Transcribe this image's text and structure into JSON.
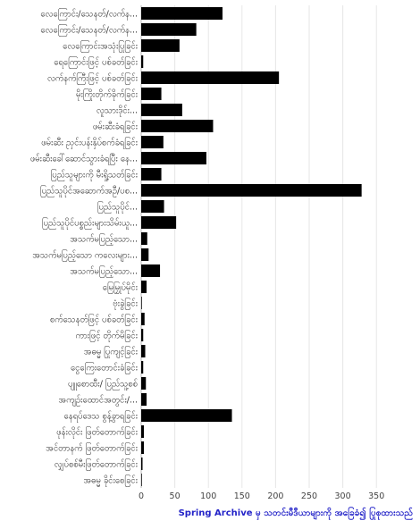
{
  "chart_data": {
    "type": "bar",
    "orientation": "horizontal",
    "categories": [
      "လေကြောင်း/သေနတ်/လက်န...",
      "လေကြောင်း/သေနတ်/လက်န...",
      "လေကြောင်းအသုံးပြုခြင်း",
      "ရေကြောင်းဖြင့် ပစ်ခတ်ခြင်း",
      "လက်နက်ကြီးဖြင့် ပစ်ခတ်ခြင်း",
      "မိုးကြိုးတိုက်ခိုက်ခြင်း",
      "လူသားဒိုင်း...",
      "ဖမ်းဆီးခံရခြင်း",
      "ဖမ်းဆီး ညှင်းပန်းနှိပ်စက်ခံရခြင်း",
      "ဖမ်းဆီးခေါ်ဆောင်သွားခံရပြီး နေ...",
      "ပြည်သူများကို မီးရှို့သတ်ခြင်း",
      "ပြည်သူပိုင်အဆောက်အဦ/ပစ...",
      "ပြည်သူပိုင်...",
      "ပြည်သူပိုင်ပစ္စည်းများသိမ်းယူ...",
      "အသက်မပြည့်သော...",
      "အသက်မပြည့်သော ကလေးများ...",
      "အသက်မပြည့်သော...",
      "မြေမြှုပ်မိုင်း",
      "ဗုံးခွဲခြင်း",
      "စက်သေနတ်ဖြင့် ပစ်ခတ်ခြင်း",
      "ကားဖြင့် တိုက်မိခြင်း",
      "အဓမ္မ ပြုကျင့်ခြင်း",
      "ငွေကြေးတောင်းခံခြင်း",
      "ပျူစောထီး/ ပြည်သူ့စစ်",
      "အကျဉ်းထောင်အတွင်း/...",
      "နေရပ်ဒေသ စွန့်ခွာရခြင်း",
      "ဖုန်းလိုင်း ဖြတ်တောက်ခြင်း",
      "အင်တာနက် ဖြတ်တောက်ခြင်း",
      "လျှပ်စစ်မီးဖြတ်တောက်ခြင်း",
      "အဓမ္မ ခိုင်းစေခြင်း"
    ],
    "values": [
      121,
      82,
      57,
      3,
      205,
      30,
      61,
      107,
      33,
      97,
      30,
      328,
      34,
      52,
      9,
      11,
      28,
      8,
      1,
      5,
      3,
      6,
      3,
      7,
      8,
      135,
      4,
      4,
      2,
      1
    ],
    "xlim": [
      0,
      375
    ],
    "xticks": [
      "0",
      "50",
      "100",
      "150",
      "200",
      "250",
      "300",
      "350"
    ],
    "xlabel": "Spring Archive မှ သတင်းမီဒီယာများကို အခြေခံ၍ ပြုစုထားသည်",
    "grid": true,
    "bar_color": "#000000"
  }
}
